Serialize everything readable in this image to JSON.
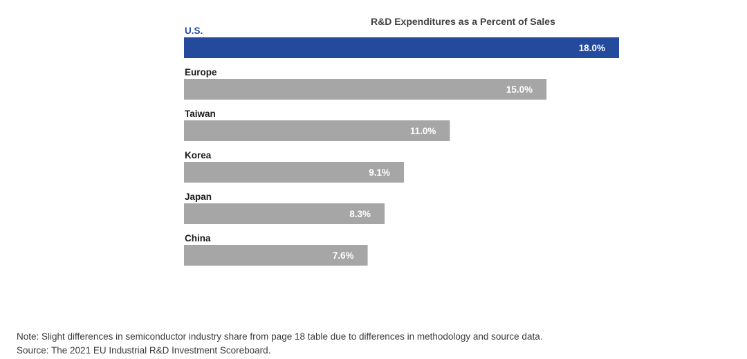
{
  "chart_data": {
    "type": "bar",
    "orientation": "horizontal",
    "title": "R&D Expenditures as a Percent of Sales",
    "categories": [
      "U.S.",
      "Europe",
      "Taiwan",
      "Korea",
      "Japan",
      "China"
    ],
    "values": [
      18.0,
      15.0,
      11.0,
      9.1,
      8.3,
      7.6
    ],
    "value_labels": [
      "18.0%",
      "15.0%",
      "11.0%",
      "9.1%",
      "8.3%",
      "7.6%"
    ],
    "highlight_color": "#234a9c",
    "bar_color": "#a6a6a6",
    "xlim": [
      0,
      18
    ],
    "grid": false,
    "legend": "none"
  },
  "footnotes": {
    "note": "Note: Slight differences in semiconductor industry share from page 18 table due to differences in methodology and source data.",
    "source": "Source: The 2021 EU Industrial R&D Investment Scoreboard."
  }
}
